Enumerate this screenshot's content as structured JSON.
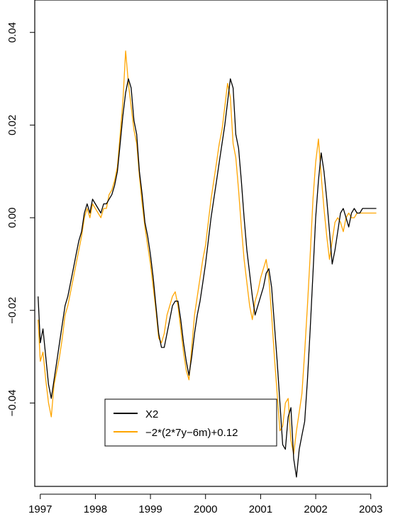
{
  "chart_data": {
    "type": "line",
    "title": "",
    "xlabel": "",
    "ylabel": "",
    "xlim": [
      1996.9,
      2003.3
    ],
    "ylim": [
      -0.058,
      0.047
    ],
    "x_ticks": [
      1997,
      1998,
      1999,
      2000,
      2001,
      2002,
      2003
    ],
    "x_tick_labels": [
      "1997",
      "1998",
      "1999",
      "2000",
      "2001",
      "2002",
      "2003"
    ],
    "y_ticks": [
      -0.04,
      -0.02,
      0.0,
      0.02,
      0.04
    ],
    "y_tick_labels": [
      "−0.04",
      "−0.02",
      "0.00",
      "0.02",
      "0.04"
    ],
    "grid": false,
    "legend": {
      "position": "bottom-left",
      "entries": [
        {
          "label": "X2",
          "color": "#000000"
        },
        {
          "label": "−2*(2*7y−6m)+0.12",
          "color": "#FFA500"
        }
      ]
    },
    "series": [
      {
        "name": "X2",
        "color": "#000000",
        "x": [
          1996.96,
          1997.0,
          1997.05,
          1997.1,
          1997.15,
          1997.2,
          1997.25,
          1997.3,
          1997.35,
          1997.4,
          1997.45,
          1997.5,
          1997.55,
          1997.6,
          1997.65,
          1997.7,
          1997.75,
          1997.8,
          1997.85,
          1997.9,
          1997.95,
          1998.0,
          1998.05,
          1998.1,
          1998.15,
          1998.2,
          1998.25,
          1998.3,
          1998.35,
          1998.4,
          1998.45,
          1998.5,
          1998.55,
          1998.6,
          1998.65,
          1998.7,
          1998.75,
          1998.8,
          1998.85,
          1998.9,
          1998.95,
          1999.0,
          1999.05,
          1999.1,
          1999.15,
          1999.2,
          1999.25,
          1999.3,
          1999.35,
          1999.4,
          1999.45,
          1999.5,
          1999.55,
          1999.6,
          1999.65,
          1999.7,
          1999.75,
          1999.8,
          1999.85,
          1999.9,
          1999.95,
          2000.0,
          2000.05,
          2000.1,
          2000.15,
          2000.2,
          2000.25,
          2000.3,
          2000.35,
          2000.4,
          2000.45,
          2000.5,
          2000.55,
          2000.6,
          2000.65,
          2000.7,
          2000.75,
          2000.8,
          2000.85,
          2000.9,
          2000.95,
          2001.0,
          2001.05,
          2001.1,
          2001.15,
          2001.2,
          2001.25,
          2001.3,
          2001.35,
          2001.4,
          2001.45,
          2001.5,
          2001.55,
          2001.6,
          2001.65,
          2001.7,
          2001.75,
          2001.8,
          2001.85,
          2001.9,
          2001.95,
          2002.0,
          2002.05,
          2002.1,
          2002.15,
          2002.2,
          2002.25,
          2002.3,
          2002.35,
          2002.4,
          2002.45,
          2002.5,
          2002.55,
          2002.6,
          2002.65,
          2002.7,
          2002.75,
          2002.8,
          2002.85,
          2002.9,
          2002.95,
          2003.0,
          2003.05,
          2003.1
        ],
        "values": [
          -0.017,
          -0.027,
          -0.024,
          -0.03,
          -0.036,
          -0.039,
          -0.035,
          -0.031,
          -0.027,
          -0.023,
          -0.019,
          -0.017,
          -0.014,
          -0.011,
          -0.008,
          -0.005,
          -0.003,
          0.001,
          0.003,
          0.001,
          0.004,
          0.003,
          0.002,
          0.001,
          0.003,
          0.003,
          0.004,
          0.005,
          0.007,
          0.01,
          0.016,
          0.022,
          0.027,
          0.03,
          0.028,
          0.021,
          0.018,
          0.01,
          0.005,
          -0.001,
          -0.004,
          -0.008,
          -0.013,
          -0.019,
          -0.025,
          -0.028,
          -0.028,
          -0.025,
          -0.022,
          -0.019,
          -0.018,
          -0.018,
          -0.022,
          -0.027,
          -0.031,
          -0.034,
          -0.03,
          -0.025,
          -0.021,
          -0.018,
          -0.014,
          -0.01,
          -0.005,
          0.0,
          0.004,
          0.008,
          0.012,
          0.016,
          0.02,
          0.025,
          0.03,
          0.028,
          0.018,
          0.015,
          0.008,
          0.0,
          -0.007,
          -0.012,
          -0.017,
          -0.021,
          -0.019,
          -0.017,
          -0.015,
          -0.012,
          -0.011,
          -0.015,
          -0.023,
          -0.031,
          -0.04,
          -0.049,
          -0.05,
          -0.043,
          -0.041,
          -0.052,
          -0.056,
          -0.05,
          -0.047,
          -0.044,
          -0.035,
          -0.024,
          -0.012,
          0.0,
          0.008,
          0.014,
          0.01,
          0.004,
          -0.003,
          -0.01,
          -0.007,
          -0.003,
          0.001,
          0.002,
          0.0,
          -0.002,
          0.001,
          0.002,
          0.001,
          0.001,
          0.002,
          0.002,
          0.002,
          0.002,
          0.002,
          0.002
        ],
        "note": ""
      },
      {
        "name": "−2*(2*7y−6m)+0.12",
        "color": "#FFA500",
        "x": [
          1996.96,
          1997.0,
          1997.05,
          1997.1,
          1997.15,
          1997.2,
          1997.25,
          1997.3,
          1997.35,
          1997.4,
          1997.45,
          1997.5,
          1997.55,
          1997.6,
          1997.65,
          1997.7,
          1997.75,
          1997.8,
          1997.85,
          1997.9,
          1997.95,
          1998.0,
          1998.05,
          1998.1,
          1998.15,
          1998.2,
          1998.25,
          1998.3,
          1998.35,
          1998.4,
          1998.45,
          1998.5,
          1998.55,
          1998.6,
          1998.65,
          1998.7,
          1998.75,
          1998.8,
          1998.85,
          1998.9,
          1998.95,
          1999.0,
          1999.05,
          1999.1,
          1999.15,
          1999.2,
          1999.25,
          1999.3,
          1999.35,
          1999.4,
          1999.45,
          1999.5,
          1999.55,
          1999.6,
          1999.65,
          1999.7,
          1999.75,
          1999.8,
          1999.85,
          1999.9,
          1999.95,
          2000.0,
          2000.05,
          2000.1,
          2000.15,
          2000.2,
          2000.25,
          2000.3,
          2000.35,
          2000.4,
          2000.45,
          2000.5,
          2000.55,
          2000.6,
          2000.65,
          2000.7,
          2000.75,
          2000.8,
          2000.85,
          2000.9,
          2000.95,
          2001.0,
          2001.05,
          2001.1,
          2001.15,
          2001.2,
          2001.25,
          2001.3,
          2001.35,
          2001.4,
          2001.45,
          2001.5,
          2001.55,
          2001.6,
          2001.65,
          2001.7,
          2001.75,
          2001.8,
          2001.85,
          2001.9,
          2001.95,
          2002.0,
          2002.05,
          2002.1,
          2002.15,
          2002.2,
          2002.25,
          2002.3,
          2002.35,
          2002.4,
          2002.45,
          2002.5,
          2002.55,
          2002.6,
          2002.65,
          2002.7,
          2002.75,
          2002.8,
          2002.85,
          2002.9,
          2002.95,
          2003.0,
          2003.05,
          2003.1
        ],
        "values": [
          -0.022,
          -0.031,
          -0.029,
          -0.035,
          -0.04,
          -0.043,
          -0.036,
          -0.033,
          -0.03,
          -0.026,
          -0.021,
          -0.019,
          -0.016,
          -0.013,
          -0.01,
          -0.007,
          -0.004,
          0.0,
          0.002,
          0.0,
          0.003,
          0.002,
          0.001,
          0.0,
          0.002,
          0.002,
          0.005,
          0.006,
          0.008,
          0.011,
          0.018,
          0.025,
          0.036,
          0.029,
          0.024,
          0.019,
          0.016,
          0.009,
          0.003,
          -0.002,
          -0.006,
          -0.01,
          -0.015,
          -0.02,
          -0.026,
          -0.027,
          -0.025,
          -0.021,
          -0.019,
          -0.017,
          -0.016,
          -0.019,
          -0.024,
          -0.029,
          -0.033,
          -0.035,
          -0.028,
          -0.021,
          -0.017,
          -0.013,
          -0.009,
          -0.006,
          -0.001,
          0.004,
          0.008,
          0.012,
          0.016,
          0.019,
          0.024,
          0.029,
          0.026,
          0.016,
          0.013,
          0.006,
          -0.002,
          -0.009,
          -0.014,
          -0.019,
          -0.022,
          -0.018,
          -0.016,
          -0.013,
          -0.011,
          -0.009,
          -0.013,
          -0.021,
          -0.03,
          -0.038,
          -0.046,
          -0.045,
          -0.04,
          -0.039,
          -0.048,
          -0.051,
          -0.046,
          -0.042,
          -0.038,
          -0.029,
          -0.019,
          -0.008,
          0.004,
          0.012,
          0.017,
          0.009,
          0.002,
          -0.004,
          -0.009,
          -0.005,
          -0.001,
          0.0,
          -0.001,
          -0.003,
          0.0,
          0.001,
          0.0,
          0.0,
          0.001,
          0.001,
          0.001,
          0.001,
          0.001,
          0.001,
          0.001,
          0.001
        ],
        "note": ""
      }
    ]
  }
}
